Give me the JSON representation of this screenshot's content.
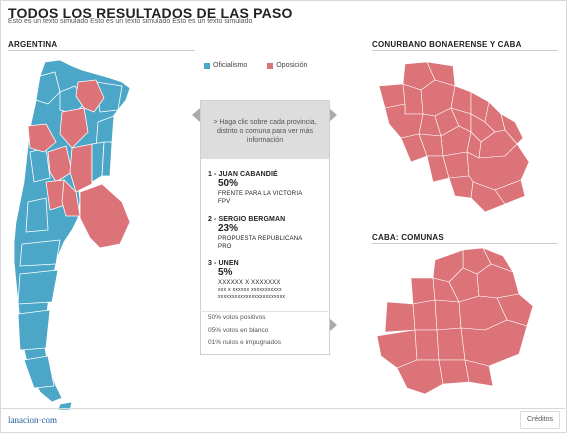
{
  "header": {
    "title": "TODOS LOS RESULTADOS DE LAS PASO",
    "subtitle": "Esto es un texto simulado Esto es un texto simulado Esto es un texto simulado"
  },
  "sections": {
    "argentina": "ARGENTINA",
    "conurbano": "CONURBANO BONAERENSE Y CABA",
    "caba": "CABA: COMUNAS"
  },
  "legend": {
    "officialism": "Oficialismo",
    "opposition": "Oposición"
  },
  "colors": {
    "officialism": "#4ba6c7",
    "opposition": "#db7378",
    "panel_bg": "#dddddd",
    "brand": "#245e9c"
  },
  "panel": {
    "hint": "> Haga clic sobre cada provincia, distrito o comuna para ver más información"
  },
  "candidates": [
    {
      "rank_name": "1 - JUAN CABANDIÉ",
      "percent": "50%",
      "party": "FRENTE PARA LA VICTORIA",
      "short": "FPV"
    },
    {
      "rank_name": "2 - SERGIO BERGMAN",
      "percent": "23%",
      "party": "PROPUESTA REPUBLICANA",
      "short": "PRO"
    },
    {
      "rank_name": "3 - UNEN",
      "percent": "5%",
      "party": "XXXXXX X XXXXXXX",
      "short": "xxx x xxxxxx xxxxxxxxxxx",
      "extra": "xxxxxxxxxxxxxxxxxxxxxxxx"
    }
  ],
  "stats": {
    "positive": "50% votos positivos",
    "blank": "05% votos en blanco",
    "null": "01% nulos e impugnados"
  },
  "footer": {
    "brand": "lanacion·com",
    "credits": "Créditos"
  }
}
